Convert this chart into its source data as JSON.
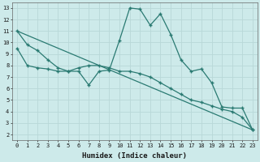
{
  "xlabel": "Humidex (Indice chaleur)",
  "xlim": [
    -0.5,
    23.5
  ],
  "ylim": [
    1.5,
    13.5
  ],
  "xticks": [
    0,
    1,
    2,
    3,
    4,
    5,
    6,
    7,
    8,
    9,
    10,
    11,
    12,
    13,
    14,
    15,
    16,
    17,
    18,
    19,
    20,
    21,
    22,
    23
  ],
  "yticks": [
    2,
    3,
    4,
    5,
    6,
    7,
    8,
    9,
    10,
    11,
    12,
    13
  ],
  "bg_color": "#cdeaea",
  "grid_color": "#b8d8d8",
  "line_color": "#2a7a72",
  "line1_x": [
    0,
    1,
    2,
    3,
    4,
    5,
    6,
    7,
    8,
    9,
    10,
    11,
    12,
    13,
    14,
    15,
    16,
    17,
    18,
    19,
    20,
    21,
    22,
    23
  ],
  "line1_y": [
    11.0,
    9.8,
    9.3,
    8.5,
    7.8,
    7.5,
    7.5,
    6.3,
    7.5,
    7.6,
    10.2,
    13.0,
    12.9,
    11.5,
    12.5,
    10.7,
    8.5,
    7.5,
    7.7,
    6.5,
    4.4,
    4.3,
    4.3,
    2.4
  ],
  "line2_x": [
    0,
    1,
    2,
    3,
    4,
    5,
    6,
    7,
    8,
    9,
    10,
    11,
    12,
    13,
    14,
    15,
    16,
    17,
    18,
    19,
    20,
    21,
    22,
    23
  ],
  "line2_y": [
    9.5,
    8.0,
    7.8,
    7.7,
    7.5,
    7.5,
    7.8,
    8.0,
    8.0,
    7.8,
    7.5,
    7.5,
    7.3,
    7.0,
    6.5,
    6.0,
    5.5,
    5.0,
    4.8,
    4.5,
    4.2,
    4.0,
    3.5,
    2.4
  ],
  "line3_x": [
    0,
    23
  ],
  "line3_y": [
    11.0,
    2.4
  ]
}
